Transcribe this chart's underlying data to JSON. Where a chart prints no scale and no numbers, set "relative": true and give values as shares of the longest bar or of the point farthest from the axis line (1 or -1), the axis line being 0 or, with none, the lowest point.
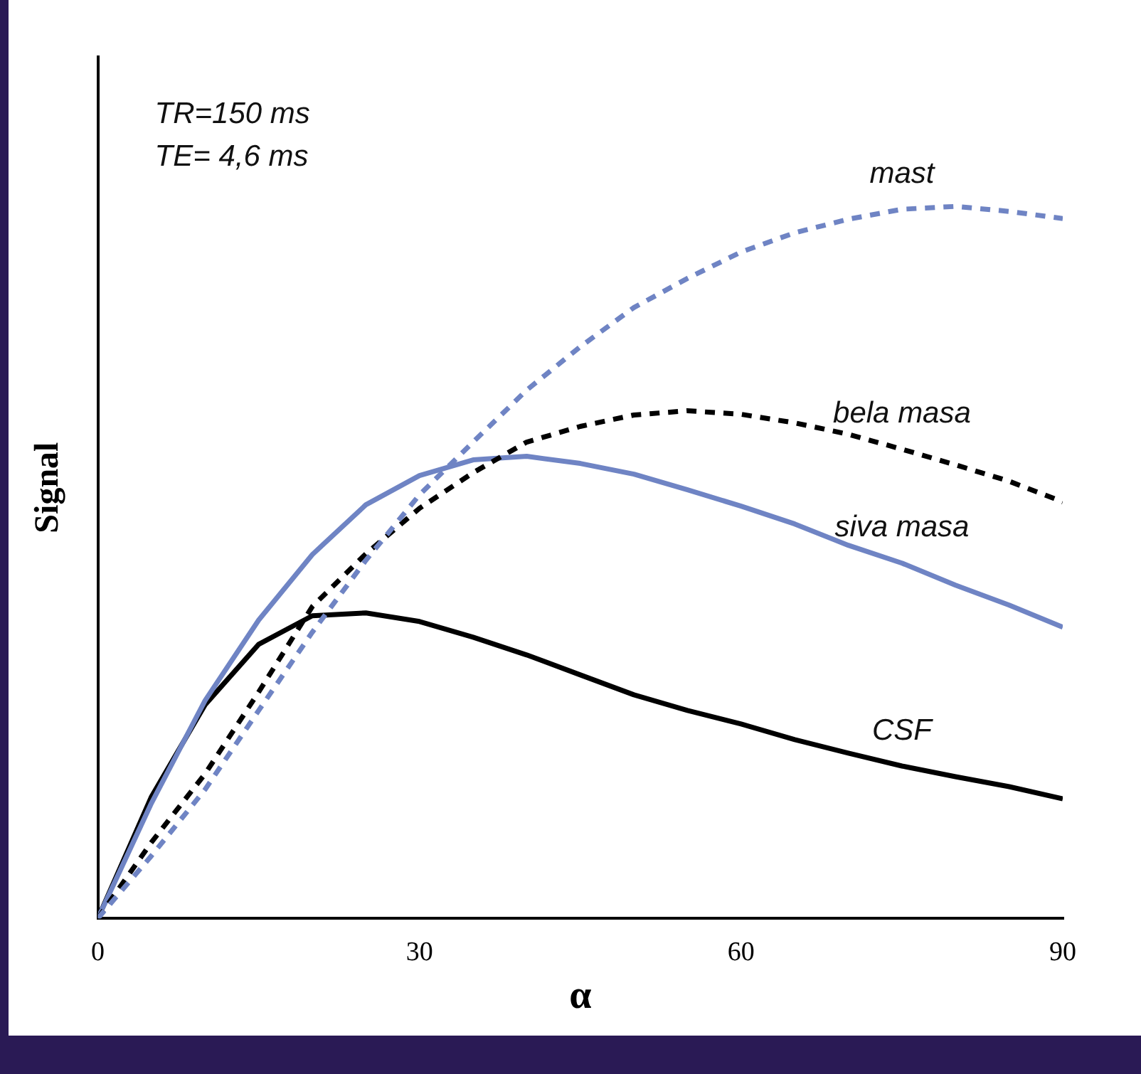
{
  "chart_data": {
    "type": "line",
    "xlabel": "α",
    "ylabel": "Signal",
    "relative": true,
    "grid": false,
    "legend": false,
    "marker": "none",
    "x": [
      0,
      5,
      10,
      15,
      20,
      25,
      30,
      35,
      40,
      45,
      50,
      55,
      60,
      65,
      70,
      75,
      80,
      85,
      90
    ],
    "xlim": [
      0,
      90
    ],
    "xticks": [
      0,
      30,
      60,
      90
    ],
    "annotations": [
      "TR=150 ms",
      "TE= 4,6 ms"
    ],
    "series": [
      {
        "name": "mast",
        "color": "#6f84c4",
        "line_style": "dashed",
        "values": [
          0,
          0.088,
          0.181,
          0.292,
          0.402,
          0.503,
          0.595,
          0.669,
          0.742,
          0.803,
          0.858,
          0.899,
          0.936,
          0.963,
          0.982,
          0.996,
          1,
          0.993,
          0.983
        ]
      },
      {
        "name": "bela masa",
        "color": "#000000",
        "line_style": "dashed",
        "values": [
          0,
          0.107,
          0.203,
          0.318,
          0.438,
          0.512,
          0.576,
          0.626,
          0.669,
          0.691,
          0.707,
          0.713,
          0.708,
          0.696,
          0.68,
          0.659,
          0.637,
          0.614,
          0.585
        ]
      },
      {
        "name": "siva masa",
        "color": "#6f84c4",
        "line_style": "solid",
        "values": [
          0,
          0.162,
          0.306,
          0.419,
          0.511,
          0.581,
          0.622,
          0.644,
          0.649,
          0.639,
          0.624,
          0.602,
          0.579,
          0.554,
          0.524,
          0.499,
          0.468,
          0.44,
          0.409
        ]
      },
      {
        "name": "CSF",
        "color": "#000000",
        "line_style": "solid",
        "values": [
          0,
          0.171,
          0.3,
          0.385,
          0.425,
          0.429,
          0.417,
          0.395,
          0.37,
          0.342,
          0.314,
          0.292,
          0.273,
          0.251,
          0.232,
          0.214,
          0.199,
          0.185,
          0.168
        ]
      }
    ]
  }
}
